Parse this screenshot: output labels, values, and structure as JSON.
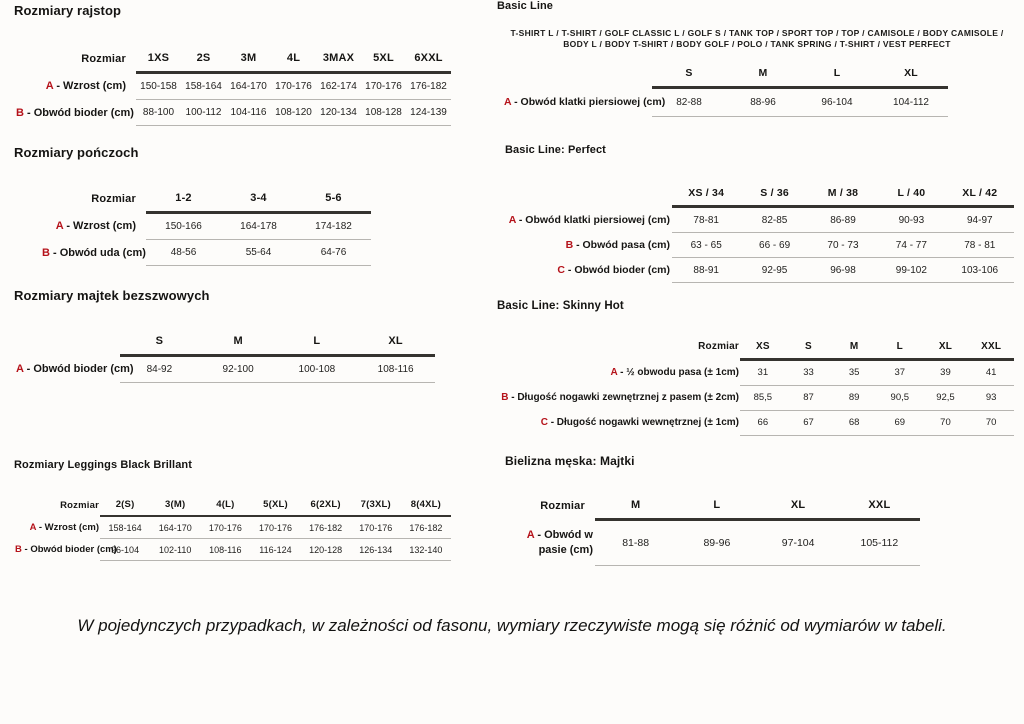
{
  "accent_color": "#b5121a",
  "footnote": "W pojedynczych przypadkach, w zależności od fasonu, wymiary rzeczywiste mogą się różnić od wymiarów w tabeli.",
  "tables": {
    "rajstopy": {
      "title": "Rozmiary rajstop",
      "corner": "Rozmiar",
      "columns": [
        "1XS",
        "2S",
        "3M",
        "4L",
        "3MAX",
        "5XL",
        "6XXL"
      ],
      "rows": [
        {
          "letter": "A",
          "label": " - Wzrost (cm)",
          "values": [
            "150-158",
            "158-164",
            "164-170",
            "170-176",
            "162-174",
            "170-176",
            "176-182"
          ]
        },
        {
          "letter": "B",
          "label": " - Obwód bioder (cm)",
          "values": [
            "88-100",
            "100-112",
            "104-116",
            "108-120",
            "120-134",
            "108-128",
            "124-139"
          ]
        }
      ]
    },
    "ponczochy": {
      "title": "Rozmiary pończoch",
      "corner": "Rozmiar",
      "columns": [
        "1-2",
        "3-4",
        "5-6"
      ],
      "rows": [
        {
          "letter": "A",
          "label": " - Wzrost (cm)",
          "values": [
            "150-166",
            "164-178",
            "174-182"
          ]
        },
        {
          "letter": "B",
          "label": " - Obwód uda (cm)",
          "values": [
            "48-56",
            "55-64",
            "64-76"
          ]
        }
      ]
    },
    "majtki_bezszwowe": {
      "title": "Rozmiary majtek bezszwowych",
      "corner": "",
      "columns": [
        "S",
        "M",
        "L",
        "XL"
      ],
      "rows": [
        {
          "letter": "A",
          "label": " - Obwód bioder (cm)",
          "values": [
            "84-92",
            "92-100",
            "100-108",
            "108-116"
          ]
        }
      ]
    },
    "leggings": {
      "title": "Rozmiary Leggings Black Brillant",
      "corner": "Rozmiar",
      "columns": [
        "2(S)",
        "3(M)",
        "4(L)",
        "5(XL)",
        "6(2XL)",
        "7(3XL)",
        "8(4XL)"
      ],
      "rows": [
        {
          "letter": "A",
          "label": " - Wzrost (cm)",
          "values": [
            "158-164",
            "164-170",
            "170-176",
            "170-176",
            "176-182",
            "170-176",
            "176-182"
          ]
        },
        {
          "letter": "B",
          "label": " - Obwód bioder (cm)",
          "values": [
            "96-104",
            "102-110",
            "108-116",
            "116-124",
            "120-128",
            "126-134",
            "132-140"
          ]
        }
      ]
    },
    "basic_line": {
      "title": "Basic Line",
      "products": "T-SHIRT L / T-SHIRT / GOLF CLASSIC L / GOLF S / TANK TOP / SPORT TOP / TOP / CAMISOLE / BODY CAMISOLE / BODY L / BODY T-SHIRT / BODY GOLF / POLO / TANK SPRING / T-SHIRT / VEST PERFECT",
      "corner": "",
      "columns": [
        "S",
        "M",
        "L",
        "XL"
      ],
      "rows": [
        {
          "letter": "A",
          "label": " - Obwód klatki piersiowej (cm)",
          "values": [
            "82-88",
            "88-96",
            "96-104",
            "104-112"
          ]
        }
      ]
    },
    "basic_line_perfect": {
      "title": "Basic Line: Perfect",
      "corner": "",
      "columns": [
        "XS / 34",
        "S / 36",
        "M / 38",
        "L / 40",
        "XL / 42"
      ],
      "rows": [
        {
          "letter": "A",
          "label": " - Obwód klatki piersiowej (cm)",
          "values": [
            "78-81",
            "82-85",
            "86-89",
            "90-93",
            "94-97"
          ]
        },
        {
          "letter": "B",
          "label": " - Obwód pasa (cm)",
          "values": [
            "63 - 65",
            "66 - 69",
            "70 - 73",
            "74 - 77",
            "78 - 81"
          ]
        },
        {
          "letter": "C",
          "label": " - Obwód bioder (cm)",
          "values": [
            "88-91",
            "92-95",
            "96-98",
            "99-102",
            "103-106"
          ]
        }
      ]
    },
    "basic_line_skinny_hot": {
      "title": "Basic Line: Skinny Hot",
      "corner": "Rozmiar",
      "columns": [
        "XS",
        "S",
        "M",
        "L",
        "XL",
        "XXL"
      ],
      "rows": [
        {
          "letter": "A",
          "label": " - ½ obwodu pasa (± 1cm)",
          "values": [
            "31",
            "33",
            "35",
            "37",
            "39",
            "41"
          ]
        },
        {
          "letter": "B",
          "label": " - Długość nogawki zewnętrznej z pasem (± 2cm)",
          "values": [
            "85,5",
            "87",
            "89",
            "90,5",
            "92,5",
            "93"
          ]
        },
        {
          "letter": "C",
          "label": " - Długość nogawki wewnętrznej (± 1cm)",
          "values": [
            "66",
            "67",
            "68",
            "69",
            "70",
            "70"
          ]
        }
      ]
    },
    "bielizna_meska": {
      "title": "Bielizna męska: Majtki",
      "corner": "Rozmiar",
      "columns": [
        "M",
        "L",
        "XL",
        "XXL"
      ],
      "rows": [
        {
          "letter": "A",
          "label": " - Obwód w pasie (cm)",
          "values": [
            "81-88",
            "89-96",
            "97-104",
            "105-112"
          ]
        }
      ]
    }
  }
}
